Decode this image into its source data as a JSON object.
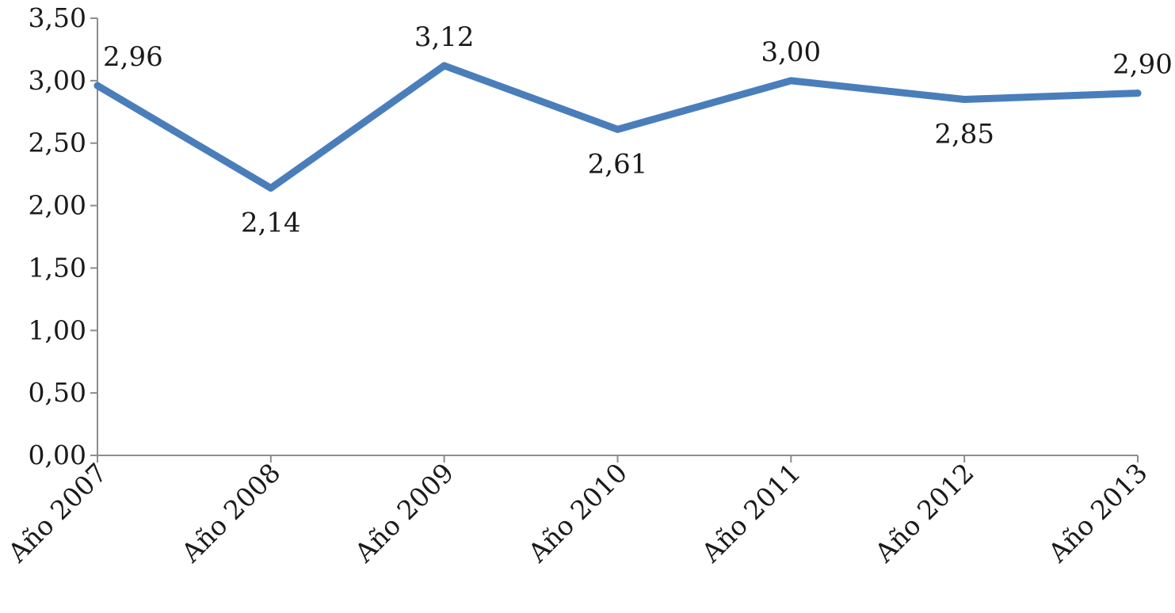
{
  "chart_data": {
    "type": "line",
    "categories": [
      "Año 2007",
      "Año 2008",
      "Año 2009",
      "Año 2010",
      "Año 2011",
      "Año 2012",
      "Año 2013"
    ],
    "series": [
      {
        "values": [
          2.96,
          2.14,
          3.12,
          2.61,
          3.0,
          2.85,
          2.9
        ],
        "data_labels": [
          "2,96",
          "2,14",
          "3,12",
          "2,61",
          "3,00",
          "2,85",
          "2,90"
        ],
        "color": "#4a7ebb"
      }
    ],
    "y_ticks": [
      {
        "value": 0.0,
        "label": "0,00"
      },
      {
        "value": 0.5,
        "label": "0,50"
      },
      {
        "value": 1.0,
        "label": "1,00"
      },
      {
        "value": 1.5,
        "label": "1,50"
      },
      {
        "value": 2.0,
        "label": "2,00"
      },
      {
        "value": 2.5,
        "label": "2,50"
      },
      {
        "value": 3.0,
        "label": "3,00"
      },
      {
        "value": 3.5,
        "label": "3,50"
      }
    ],
    "ylim": [
      0,
      3.5
    ],
    "title": "",
    "xlabel": "",
    "ylabel": "",
    "grid": false,
    "legend": "none"
  }
}
